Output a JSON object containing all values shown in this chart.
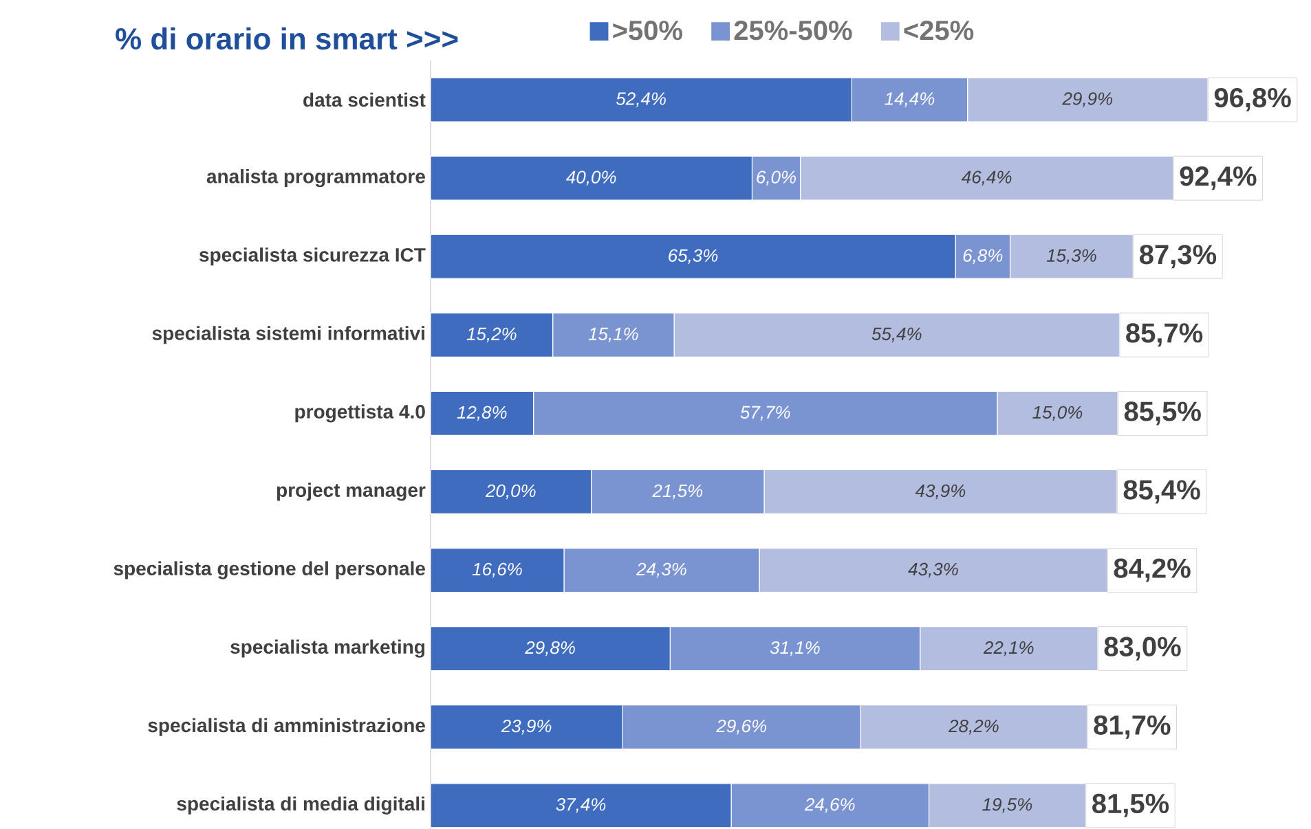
{
  "chart_data": {
    "type": "bar",
    "orientation": "horizontal",
    "stacked": true,
    "title": "% di orario in smart >>>",
    "categories": [
      "data scientist",
      "analista programmatore",
      "specialista sicurezza ICT",
      "specialista sistemi informativi",
      "progettista 4.0",
      "project manager",
      "specialista gestione del personale",
      "specialista marketing",
      "specialista di amministrazione",
      "specialista di media digitali"
    ],
    "series": [
      {
        "name": ">50%",
        "color": "#3f6cbf",
        "values": [
          52.4,
          40.0,
          65.3,
          15.2,
          12.8,
          20.0,
          16.6,
          29.8,
          23.9,
          37.4
        ],
        "value_labels": [
          "52,4%",
          "40,0%",
          "65,3%",
          "15,2%",
          "12,8%",
          "20,0%",
          "16,6%",
          "29,8%",
          "23,9%",
          "37,4%"
        ]
      },
      {
        "name": "25%-50%",
        "color": "#7a93d1",
        "values": [
          14.4,
          6.0,
          6.8,
          15.1,
          57.7,
          21.5,
          24.3,
          31.1,
          29.6,
          24.6
        ],
        "value_labels": [
          "14,4%",
          "6,0%",
          "6,8%",
          "15,1%",
          "57,7%",
          "21,5%",
          "24,3%",
          "31,1%",
          "29,6%",
          "24,6%"
        ]
      },
      {
        "name": "<25%",
        "color": "#b3bde0",
        "values": [
          29.9,
          46.4,
          15.3,
          55.4,
          15.0,
          43.9,
          43.3,
          22.1,
          28.2,
          19.5
        ],
        "value_labels": [
          "29,9%",
          "46,4%",
          "15,3%",
          "55,4%",
          "15,0%",
          "43,9%",
          "43,3%",
          "22,1%",
          "28,2%",
          "19,5%"
        ]
      }
    ],
    "totals": [
      "96,8%",
      "92,4%",
      "87,3%",
      "85,7%",
      "85,5%",
      "85,4%",
      "84,2%",
      "83,0%",
      "81,7%",
      "81,5%"
    ],
    "legend": "top",
    "tick_labels": "y"
  }
}
